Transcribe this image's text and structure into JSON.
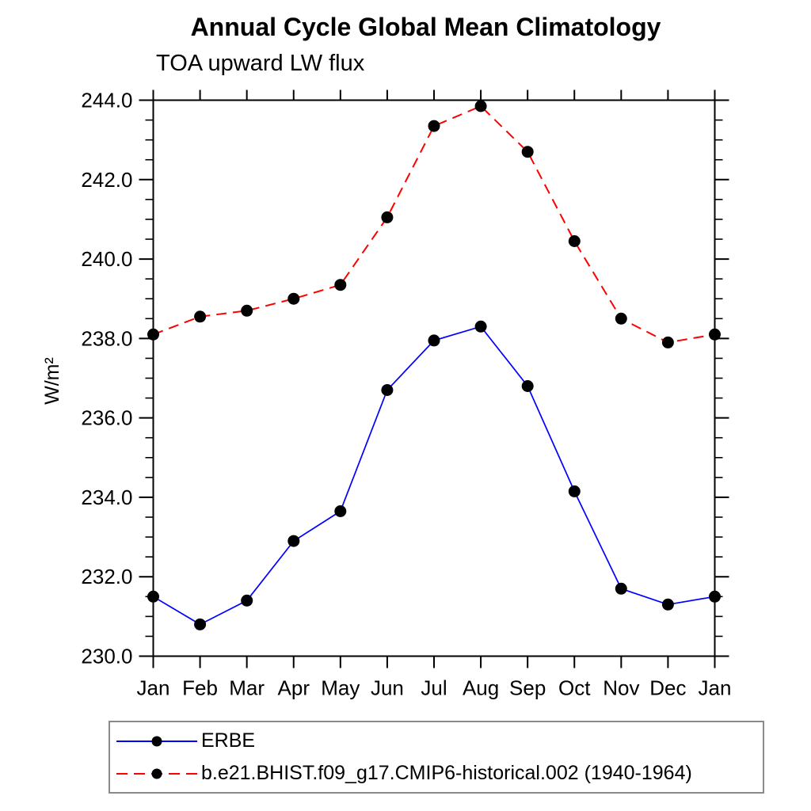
{
  "title": "Annual Cycle Global Mean Climatology",
  "subtitle": "TOA upward LW flux",
  "chart_data": {
    "type": "line",
    "title": "Annual Cycle Global Mean Climatology",
    "subtitle": "TOA upward LW flux",
    "xlabel": "",
    "ylabel": "W/m²",
    "x_categories": [
      "Jan",
      "Feb",
      "Mar",
      "Apr",
      "May",
      "Jun",
      "Jul",
      "Aug",
      "Sep",
      "Oct",
      "Nov",
      "Dec",
      "Jan"
    ],
    "ylim": [
      230.0,
      244.0
    ],
    "ytick_major_step": 2.0,
    "ytick_minor_step": 0.5,
    "ytick_labels": [
      "230.0",
      "232.0",
      "234.0",
      "236.0",
      "238.0",
      "240.0",
      "242.0",
      "244.0"
    ],
    "grid": false,
    "legend_position": "bottom-left",
    "axis_color": "#000000",
    "marker_color": "#000000",
    "series": [
      {
        "name": "ERBE",
        "color": "#0000ff",
        "style": "solid",
        "marker": "circle",
        "values": [
          231.5,
          230.8,
          231.4,
          232.9,
          233.65,
          236.7,
          237.95,
          238.3,
          236.8,
          234.15,
          231.7,
          231.3,
          231.5
        ]
      },
      {
        "name": "b.e21.BHIST.f09_g17.CMIP6-historical.002 (1940-1964)",
        "color": "#ff0000",
        "style": "dashed",
        "marker": "circle",
        "values": [
          238.1,
          238.55,
          238.7,
          239.0,
          239.35,
          241.05,
          243.35,
          243.85,
          242.7,
          240.45,
          238.5,
          237.9,
          238.1
        ]
      }
    ]
  }
}
